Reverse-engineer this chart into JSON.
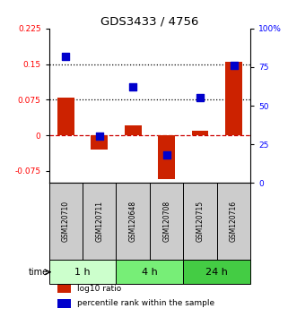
{
  "title": "GDS3433 / 4756",
  "samples": [
    "GSM120710",
    "GSM120711",
    "GSM120648",
    "GSM120708",
    "GSM120715",
    "GSM120716"
  ],
  "log10_ratio": [
    0.079,
    -0.03,
    0.022,
    -0.093,
    0.01,
    0.155
  ],
  "percentile_rank": [
    82,
    30,
    62,
    18,
    55,
    76
  ],
  "left_ylim": [
    -0.1,
    0.225
  ],
  "right_ylim": [
    0,
    100
  ],
  "left_yticks": [
    -0.075,
    0,
    0.075,
    0.15,
    0.225
  ],
  "right_yticks": [
    0,
    25,
    50,
    75,
    100
  ],
  "left_ytick_labels": [
    "-0.075",
    "0",
    "0.075",
    "0.15",
    "0.225"
  ],
  "right_ytick_labels": [
    "0",
    "25",
    "50",
    "75",
    "100%"
  ],
  "hlines": [
    0.075,
    0.15
  ],
  "bar_color": "#cc2200",
  "dot_color": "#0000cc",
  "zero_line_color": "#cc0000",
  "bar_width": 0.5,
  "dot_size": 28,
  "sample_box_color": "#cccccc",
  "time_groups": [
    {
      "label": "1 h",
      "start": 0,
      "end": 2,
      "color": "#ccffcc"
    },
    {
      "label": "4 h",
      "start": 2,
      "end": 4,
      "color": "#77ee77"
    },
    {
      "label": "24 h",
      "start": 4,
      "end": 6,
      "color": "#44cc44"
    }
  ],
  "legend_items": [
    {
      "color": "#cc2200",
      "label": "log10 ratio"
    },
    {
      "color": "#0000cc",
      "label": "percentile rank within the sample"
    }
  ]
}
